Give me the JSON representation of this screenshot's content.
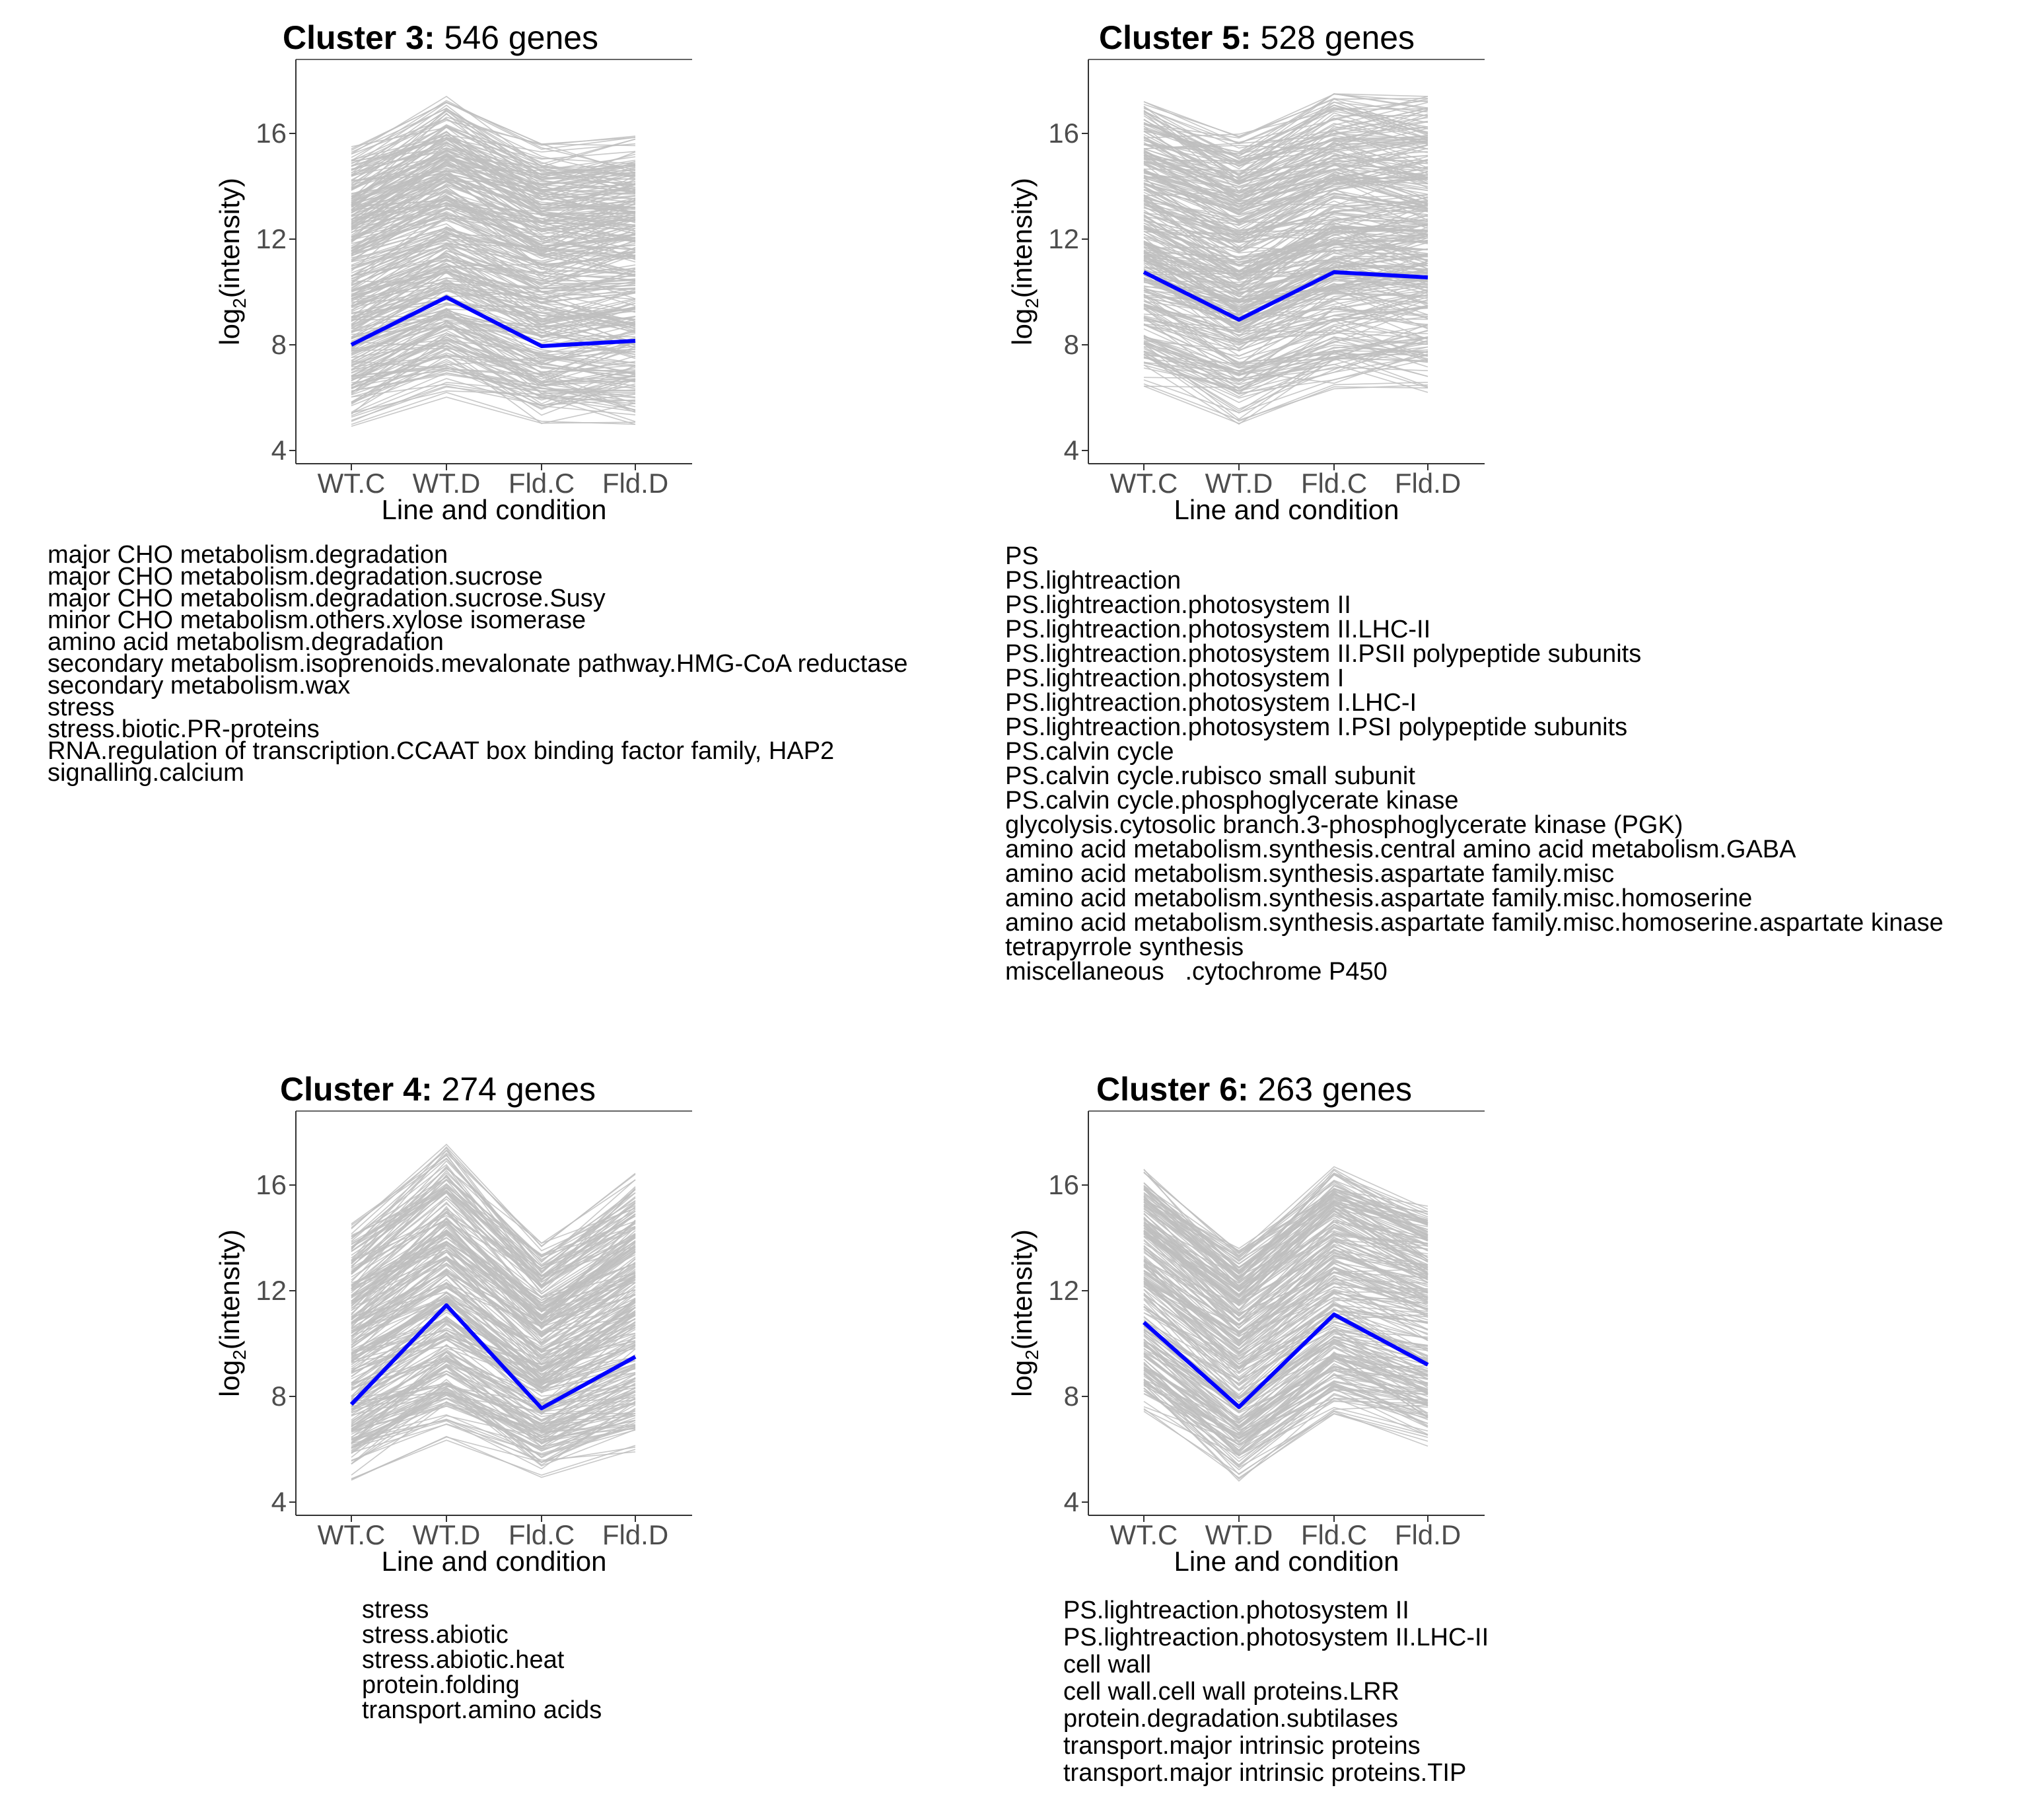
{
  "chart_data": [
    {
      "type": "line",
      "title_bold": "Cluster 3:",
      "title_rest": " 546 genes",
      "xlabel": "Line and condition",
      "ylabel_pre": "log",
      "ylabel_sub": "2",
      "ylabel_post": "(intensity)",
      "categories": [
        "WT.C",
        "WT.D",
        "Fld.C",
        "Fld.D"
      ],
      "yticks": [
        4,
        8,
        12,
        16
      ],
      "ylim": [
        3.5,
        18.8
      ],
      "mean_line": [
        8.0,
        9.8,
        7.95,
        8.15
      ],
      "band_upper": [
        15.5,
        17.4,
        15.6,
        15.9
      ],
      "band_lower": [
        4.8,
        6.0,
        4.9,
        4.9
      ],
      "n_genes": 546,
      "mean_color": "#0000ff",
      "gene_color": "#bebebe",
      "terms": [
        "major CHO metabolism.degradation",
        "major CHO metabolism.degradation.sucrose",
        "major CHO metabolism.degradation.sucrose.Susy",
        "minor CHO metabolism.others.xylose isomerase",
        "amino acid metabolism.degradation",
        "secondary metabolism.isoprenoids.mevalonate pathway.HMG-CoA reductase",
        "secondary metabolism.wax",
        "stress",
        "stress.biotic.PR-proteins",
        "RNA.regulation of transcription.CCAAT box binding factor family, HAP2",
        "signalling.calcium"
      ]
    },
    {
      "type": "line",
      "title_bold": "Cluster 5:",
      "title_rest": " 528 genes",
      "xlabel": "Line and condition",
      "ylabel_pre": "log",
      "ylabel_sub": "2",
      "ylabel_post": "(intensity)",
      "categories": [
        "WT.C",
        "WT.D",
        "Fld.C",
        "Fld.D"
      ],
      "yticks": [
        4,
        8,
        12,
        16
      ],
      "ylim": [
        3.5,
        18.8
      ],
      "mean_line": [
        10.75,
        8.95,
        10.75,
        10.55
      ],
      "band_upper": [
        17.4,
        16.0,
        17.5,
        17.4
      ],
      "band_lower": [
        6.4,
        5.0,
        6.2,
        6.2
      ],
      "n_genes": 528,
      "mean_color": "#0000ff",
      "gene_color": "#bebebe",
      "terms": [
        "PS",
        "PS.lightreaction",
        "PS.lightreaction.photosystem II",
        "PS.lightreaction.photosystem II.LHC-II",
        "PS.lightreaction.photosystem II.PSII polypeptide subunits",
        "PS.lightreaction.photosystem I",
        "PS.lightreaction.photosystem I.LHC-I",
        "PS.lightreaction.photosystem I.PSI polypeptide subunits",
        "PS.calvin cycle",
        "PS.calvin cycle.rubisco small subunit",
        "PS.calvin cycle.phosphoglycerate kinase",
        "glycolysis.cytosolic branch.3-phosphoglycerate kinase (PGK)",
        "amino acid metabolism.synthesis.central amino acid metabolism.GABA",
        "amino acid metabolism.synthesis.aspartate family.misc",
        "amino acid metabolism.synthesis.aspartate family.misc.homoserine",
        "amino acid metabolism.synthesis.aspartate family.misc.homoserine.aspartate kinase",
        "tetrapyrrole synthesis",
        "miscellaneous   .cytochrome P450"
      ]
    },
    {
      "type": "line",
      "title_bold": "Cluster 4:",
      "title_rest": " 274 genes",
      "xlabel": "Line and condition",
      "ylabel_pre": "log",
      "ylabel_sub": "2",
      "ylabel_post": "(intensity)",
      "categories": [
        "WT.C",
        "WT.D",
        "Fld.C",
        "Fld.D"
      ],
      "yticks": [
        4,
        8,
        12,
        16
      ],
      "ylim": [
        3.5,
        18.8
      ],
      "mean_line": [
        7.7,
        11.45,
        7.55,
        9.5
      ],
      "band_upper": [
        14.6,
        17.6,
        13.8,
        16.5
      ],
      "band_lower": [
        4.7,
        6.2,
        4.8,
        5.9
      ],
      "n_genes": 274,
      "mean_color": "#0000ff",
      "gene_color": "#bebebe",
      "terms": [
        "stress",
        "stress.abiotic",
        "stress.abiotic.heat",
        "protein.folding",
        "transport.amino acids"
      ]
    },
    {
      "type": "line",
      "title_bold": "Cluster 6:",
      "title_rest": " 263 genes",
      "xlabel": "Line and condition",
      "ylabel_pre": "log",
      "ylabel_sub": "2",
      "ylabel_post": "(intensity)",
      "categories": [
        "WT.C",
        "WT.D",
        "Fld.C",
        "Fld.D"
      ],
      "yticks": [
        4,
        8,
        12,
        16
      ],
      "ylim": [
        3.5,
        18.8
      ],
      "mean_line": [
        10.8,
        7.6,
        11.1,
        9.2
      ],
      "band_upper": [
        16.6,
        13.6,
        16.7,
        15.2
      ],
      "band_lower": [
        7.4,
        4.8,
        7.2,
        6.1
      ],
      "n_genes": 263,
      "mean_color": "#0000ff",
      "gene_color": "#bebebe",
      "terms": [
        "PS.lightreaction.photosystem II",
        "PS.lightreaction.photosystem II.LHC-II",
        "cell wall",
        "cell wall.cell wall proteins.LRR",
        "protein.degradation.subtilases",
        "transport.major intrinsic proteins",
        "transport.major intrinsic proteins.TIP"
      ]
    }
  ]
}
